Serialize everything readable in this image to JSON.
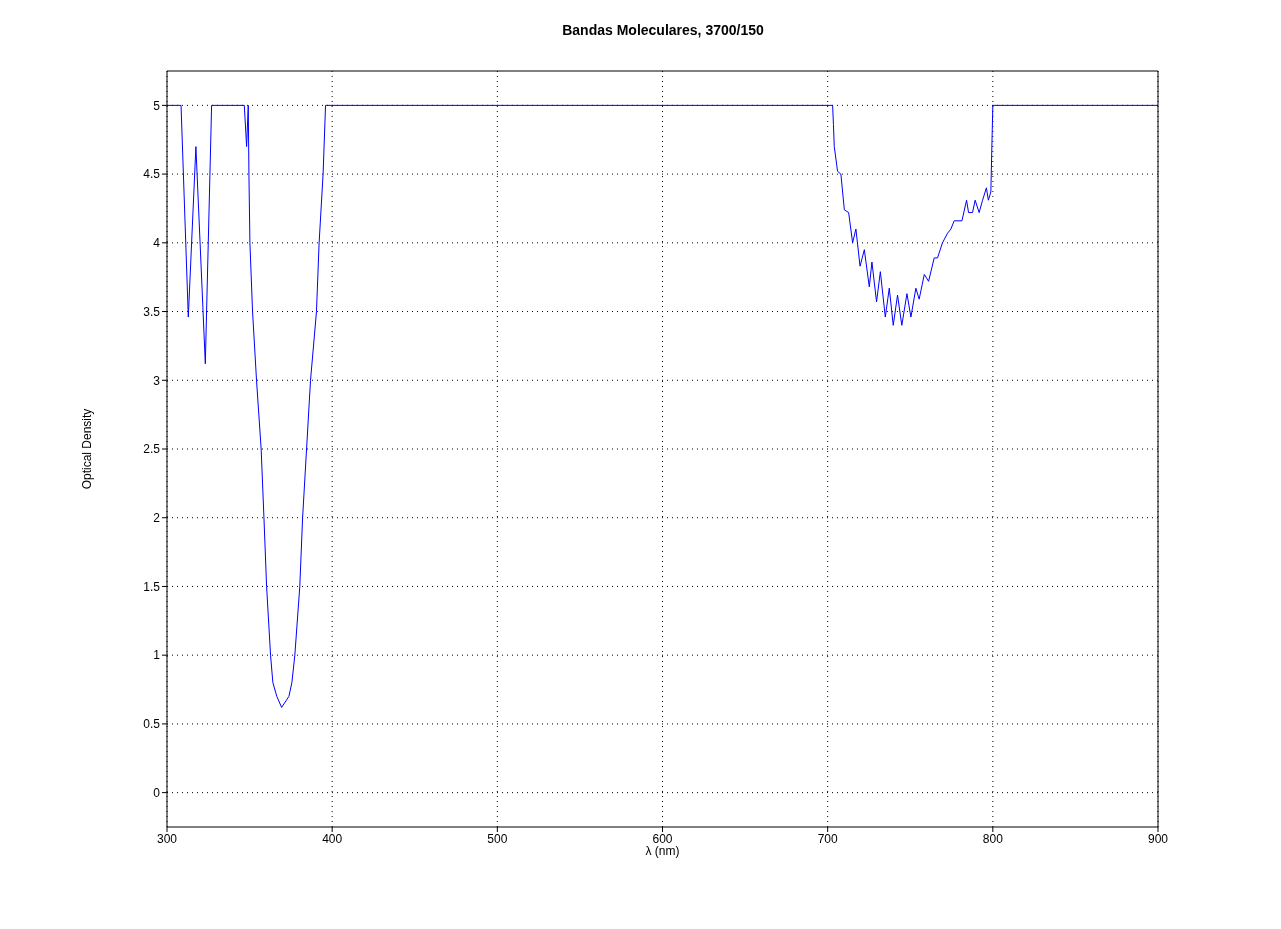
{
  "chart_data": {
    "type": "line",
    "title": "Bandas Moleculares, 3700/150",
    "xlabel": "λ (nm)",
    "ylabel": "Optical Density",
    "x": [
      300,
      308.5,
      312.9,
      317.5,
      323.2,
      327,
      346.8,
      348.2,
      349.2,
      349.6,
      350.2,
      351.8,
      354.2,
      357,
      358.7,
      360.3,
      362.7,
      364.1,
      366.5,
      369.4,
      373.8,
      375.6,
      377.4,
      380.4,
      382.1,
      384.5,
      386.9,
      390.5,
      392.1,
      394.5,
      396,
      703,
      703.5,
      704,
      706,
      708,
      710.1,
      712.7,
      715.1,
      717.1,
      719.6,
      722.2,
      725.2,
      726.8,
      729.6,
      731.9,
      734.9,
      737.3,
      739.7,
      742.3,
      744.9,
      748,
      750.4,
      753.4,
      755.4,
      758.5,
      761.1,
      764.5,
      766.5,
      769.5,
      772.6,
      774.6,
      776.6,
      781.3,
      784.1,
      785.3,
      787.7,
      789.3,
      791.7,
      793.8,
      796.1,
      797.3,
      798.8,
      799.4,
      800,
      900
    ],
    "values": [
      5,
      5,
      3.46,
      4.7,
      3.12,
      5,
      5,
      4.7,
      5,
      4.5,
      4,
      3.5,
      3,
      2.5,
      2,
      1.5,
      1,
      0.8,
      0.7,
      0.62,
      0.7,
      0.8,
      1,
      1.5,
      2,
      2.5,
      3,
      3.5,
      4,
      4.5,
      5,
      5,
      4.86,
      4.7,
      4.52,
      4.5,
      4.24,
      4.22,
      4,
      4.1,
      3.83,
      3.95,
      3.68,
      3.86,
      3.57,
      3.79,
      3.46,
      3.67,
      3.4,
      3.62,
      3.4,
      3.63,
      3.46,
      3.67,
      3.59,
      3.77,
      3.72,
      3.89,
      3.89,
      4,
      4.07,
      4.1,
      4.16,
      4.16,
      4.31,
      4.22,
      4.22,
      4.31,
      4.22,
      4.31,
      4.4,
      4.31,
      4.37,
      4.69,
      5,
      5
    ],
    "color": "#0000ff",
    "line_style": "solid",
    "xlim": [
      300,
      900
    ],
    "xticks": [
      300,
      400,
      500,
      600,
      700,
      800,
      900
    ],
    "ylim": [
      -0.25,
      5.25
    ],
    "yticks": [
      0,
      0.5,
      1,
      1.5,
      2,
      2.5,
      3,
      3.5,
      4,
      4.5,
      5
    ],
    "grid": true
  }
}
